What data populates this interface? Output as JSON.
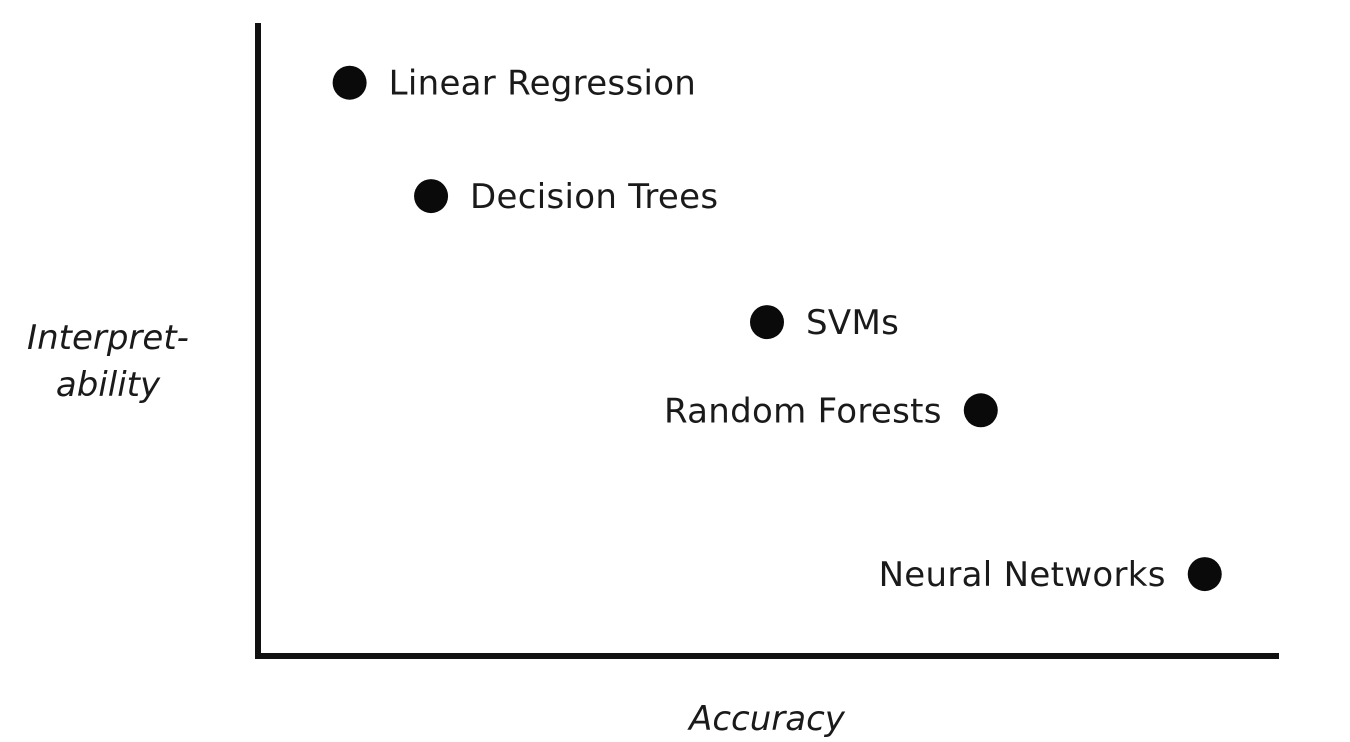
{
  "chart_data": {
    "type": "scatter",
    "title": "",
    "xlabel": "Accuracy",
    "ylabel_lines": [
      "Interpret-",
      "ability"
    ],
    "xlim": [
      0,
      100
    ],
    "ylim": [
      0,
      100
    ],
    "grid": false,
    "ticks": "none",
    "points": [
      {
        "label": "Linear Regression",
        "x": 9,
        "y": 91,
        "label_side": "right"
      },
      {
        "label": "Decision Trees",
        "x": 17,
        "y": 73,
        "label_side": "right"
      },
      {
        "label": "SVMs",
        "x": 50,
        "y": 53,
        "label_side": "right"
      },
      {
        "label": "Random Forests",
        "x": 71,
        "y": 39,
        "label_side": "left"
      },
      {
        "label": "Neural Networks",
        "x": 93,
        "y": 13,
        "label_side": "left"
      }
    ],
    "colors": {
      "point": "#0a0a0a",
      "axis": "#111111",
      "text": "#1a1a1a"
    }
  }
}
